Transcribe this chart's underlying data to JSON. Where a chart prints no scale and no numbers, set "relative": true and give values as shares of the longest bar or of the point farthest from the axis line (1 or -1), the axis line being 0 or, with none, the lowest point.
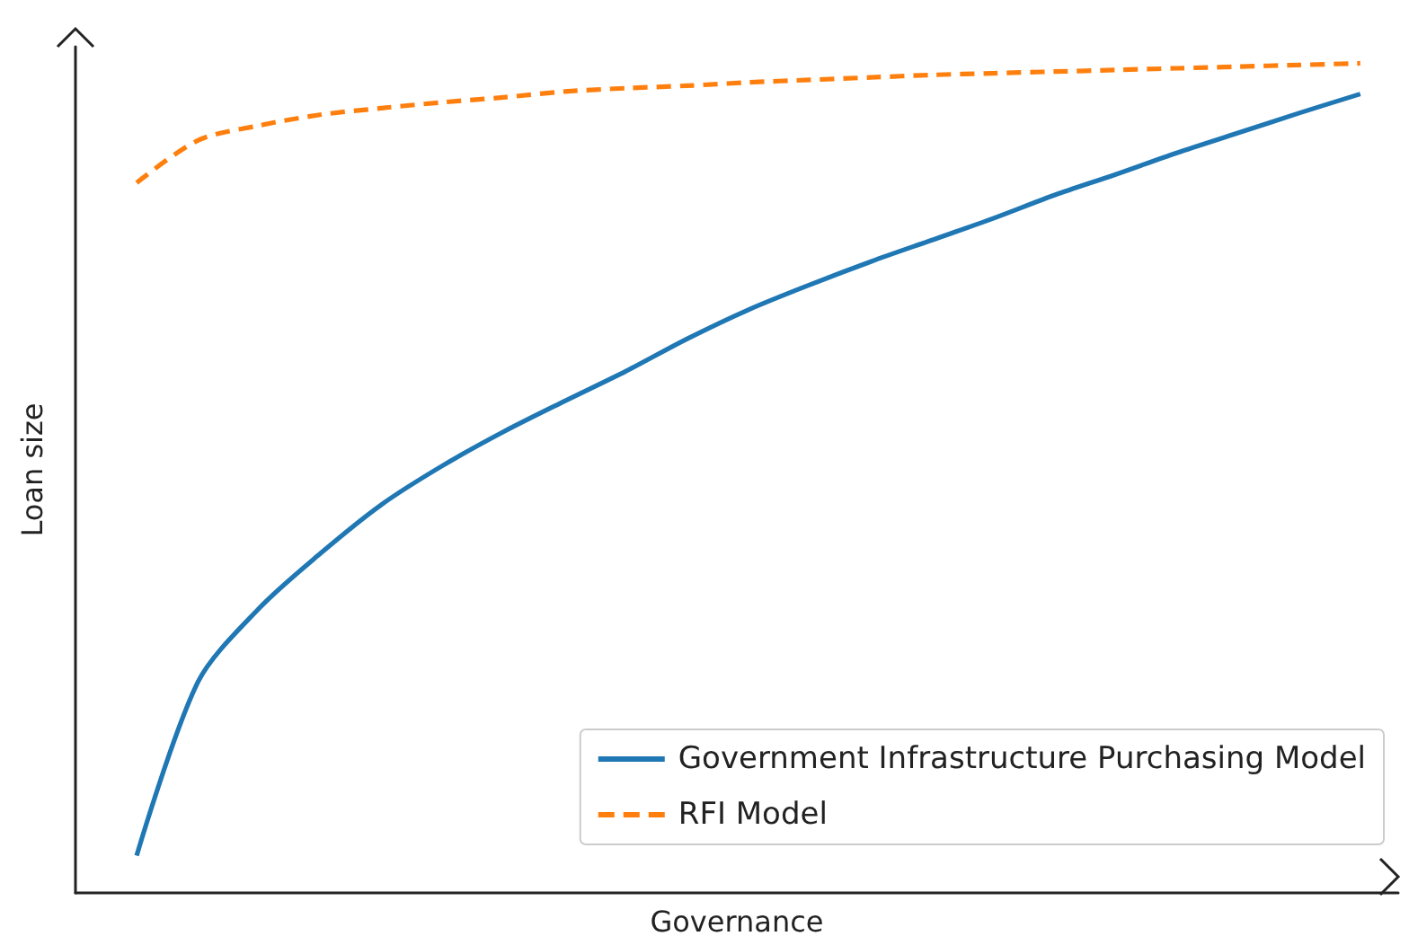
{
  "chart_data": {
    "type": "line",
    "relative": true,
    "xlabel": "Governance",
    "ylabel": "Loan size",
    "categories": [
      null,
      null,
      null,
      null,
      null,
      null,
      null,
      null,
      null,
      null,
      null,
      null,
      null,
      null,
      null,
      null,
      null,
      null,
      null,
      null,
      null
    ],
    "series": [
      {
        "name": "Government Infrastructure Purchasing Model",
        "color": "#1f77b4",
        "line_style": "solid",
        "values": [
          0.045,
          0.254,
          0.343,
          0.409,
          0.468,
          0.515,
          0.556,
          0.593,
          0.629,
          0.668,
          0.703,
          0.733,
          0.761,
          0.787,
          0.813,
          0.841,
          0.866,
          0.892,
          0.916,
          0.94,
          0.963
        ]
      },
      {
        "name": "RFI Model",
        "color": "#ff7f0e",
        "line_style": "dashed",
        "values": [
          0.856,
          0.907,
          0.925,
          0.938,
          0.946,
          0.953,
          0.959,
          0.966,
          0.97,
          0.973,
          0.977,
          0.98,
          0.983,
          0.986,
          0.988,
          0.99,
          0.992,
          0.994,
          0.996,
          0.998,
          1
        ]
      }
    ],
    "legend": "bottom right",
    "grid": false,
    "marker": "none"
  }
}
